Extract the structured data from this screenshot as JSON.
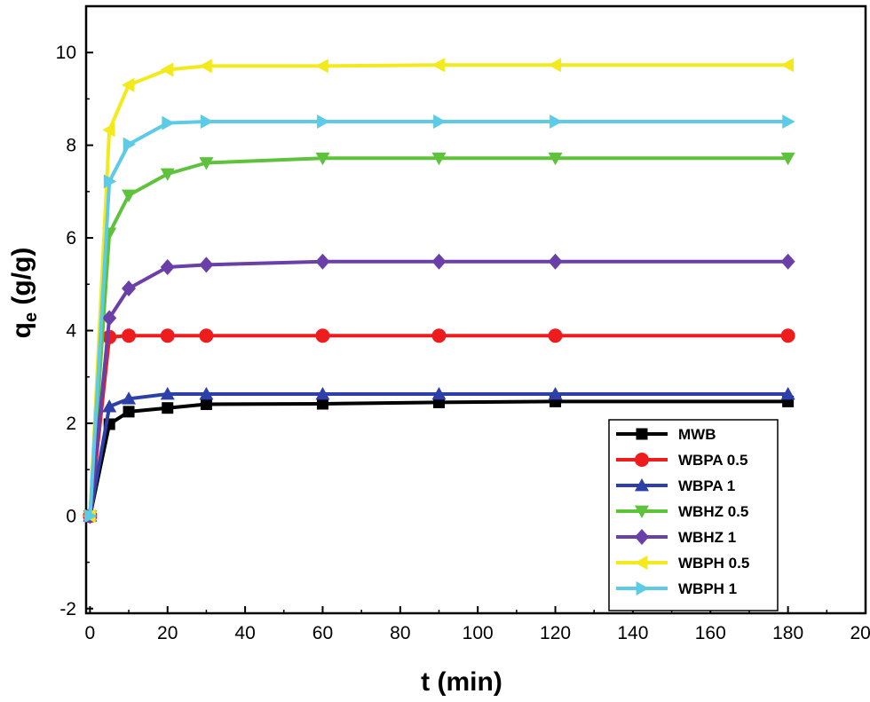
{
  "chart_data": {
    "type": "line",
    "title": "",
    "xlabel": "t (min)",
    "ylabel_main": "q",
    "ylabel_sub": "e",
    "ylabel_unit": " (g/g)",
    "xlim": [
      -1,
      200
    ],
    "ylim": [
      -2.1,
      11
    ],
    "x_ticks": [
      0,
      20,
      40,
      60,
      80,
      100,
      120,
      140,
      160,
      180,
      200
    ],
    "y_ticks": [
      -2,
      0,
      2,
      4,
      6,
      8,
      10
    ],
    "grid": false,
    "legend_position": "bottom-right",
    "x": [
      0,
      5,
      10,
      20,
      30,
      60,
      90,
      120,
      180
    ],
    "series": [
      {
        "name": "MWB",
        "color": "#000000",
        "marker": "square",
        "values": [
          0,
          1.98,
          2.25,
          2.33,
          2.41,
          2.42,
          2.45,
          2.47,
          2.47
        ]
      },
      {
        "name": "WBPA 0.5",
        "color": "#ee1c1c",
        "marker": "circle",
        "values": [
          0,
          3.86,
          3.89,
          3.89,
          3.89,
          3.89,
          3.89,
          3.89,
          3.89
        ]
      },
      {
        "name": "WBPA 1",
        "color": "#2d3fa8",
        "marker": "triangle-up",
        "values": [
          0,
          2.36,
          2.53,
          2.63,
          2.63,
          2.63,
          2.63,
          2.63,
          2.63
        ]
      },
      {
        "name": "WBHZ 0.5",
        "color": "#5fc23c",
        "marker": "triangle-down",
        "values": [
          0,
          6.1,
          6.92,
          7.38,
          7.62,
          7.72,
          7.72,
          7.72,
          7.72
        ]
      },
      {
        "name": "WBHZ 1",
        "color": "#6a3fa8",
        "marker": "diamond",
        "values": [
          0,
          4.27,
          4.91,
          5.37,
          5.42,
          5.49,
          5.49,
          5.49,
          5.49
        ]
      },
      {
        "name": "WBPH 0.5",
        "color": "#f2ea1a",
        "marker": "triangle-left",
        "values": [
          0,
          8.33,
          9.3,
          9.63,
          9.71,
          9.71,
          9.73,
          9.73,
          9.73
        ]
      },
      {
        "name": "WBPH 1",
        "color": "#5ecbe6",
        "marker": "triangle-right",
        "values": [
          0,
          7.22,
          8.02,
          8.48,
          8.51,
          8.51,
          8.51,
          8.51,
          8.51
        ]
      }
    ]
  }
}
